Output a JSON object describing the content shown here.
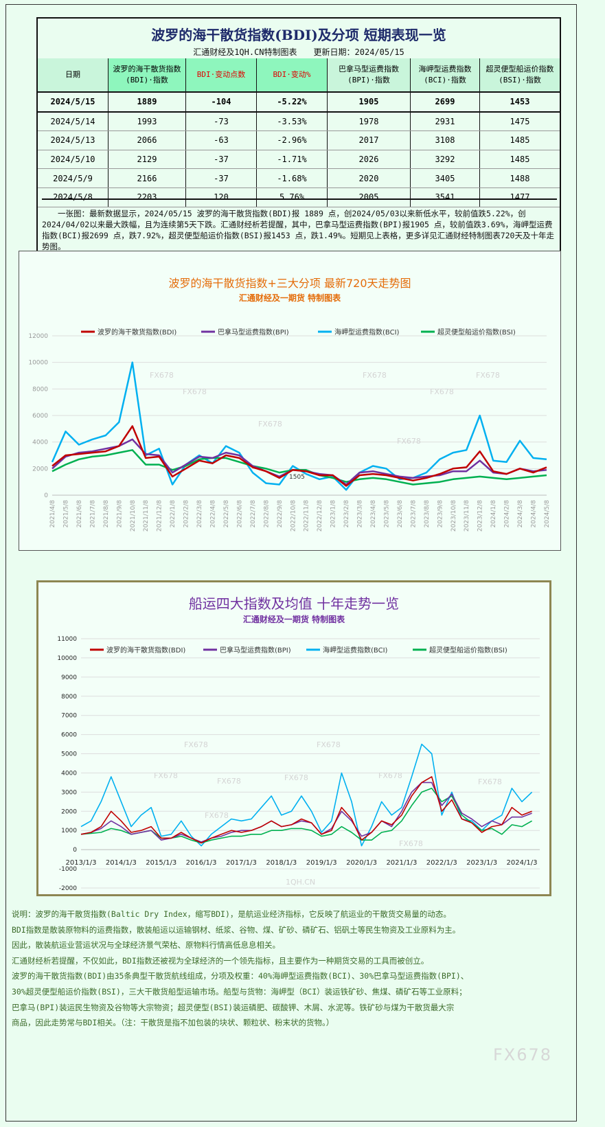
{
  "table_section": {
    "title": "波罗的海干散货指数(BDI)及分项 短期表现一览",
    "subtitle": "汇通财经及1QH.CN特制图表　　更新日期：2024/05/15",
    "headers": [
      "日期",
      "波罗的海干散货指数(BDI)·指数",
      "BDI·变动点数",
      "BDI·变动%",
      "巴拿马型运费指数(BPI)·指数",
      "海岬型运费指数(BCI)·指数",
      "超灵便型船运价指数(BSI)·指数"
    ],
    "rows": [
      [
        "2024/5/15",
        "1889",
        "-104",
        "-5.22%",
        "1905",
        "2699",
        "1453"
      ],
      [
        "2024/5/14",
        "1993",
        "-73",
        "-3.53%",
        "1978",
        "2931",
        "1475"
      ],
      [
        "2024/5/13",
        "2066",
        "-63",
        "-2.96%",
        "2017",
        "3108",
        "1485"
      ],
      [
        "2024/5/10",
        "2129",
        "-37",
        "-1.71%",
        "2026",
        "3292",
        "1485"
      ],
      [
        "2024/5/9",
        "2166",
        "-37",
        "-1.68%",
        "2020",
        "3405",
        "1488"
      ],
      [
        "2024/5/8",
        "2203",
        "120",
        "5.76%",
        "2005",
        "3541",
        "1477"
      ]
    ],
    "paragraph": "一张图：最新数据显示，2024/05/15 波罗的海干散货指数(BDI)报 1889 点，创2024/05/03以来新低水平，较前值跌5.22%，创2024/04/02以来最大跌幅，且为连续第5天下跌。汇通财经析若提醒，其中，巴拿马型运费指数(BPI)报1905 点，较前值跌3.69%，海岬型运费指数(BCI)报2699 点，跌7.92%，超灵便型船运价指数(BSI)报1453 点，跌1.49%。短期见上表格，更多详见汇通财经特制图表720天及十年走势图。"
  },
  "colors": {
    "BDI": "#c00000",
    "BPI": "#7030a0",
    "BCI": "#00b0f0",
    "BSI": "#00b050"
  },
  "chart_data": [
    {
      "type": "line",
      "title": "波罗的海干散货指数+三大分项  最新720天走势图",
      "subtitle": "汇通财经及一期货  特制图表",
      "ylim": [
        0,
        12000
      ],
      "yticks": [
        0,
        2000,
        4000,
        6000,
        8000,
        10000,
        12000
      ],
      "legend_position": "top",
      "annotation": "1505",
      "watermarks": [
        "FX678",
        "FX678",
        "FX678",
        "FX678",
        "FX678",
        "FX678",
        "FX678"
      ],
      "x": [
        "2021/4/8",
        "2021/5/8",
        "2021/6/8",
        "2021/7/8",
        "2021/8/8",
        "2021/9/8",
        "2021/10/8",
        "2021/11/8",
        "2021/12/8",
        "2022/1/8",
        "2022/2/8",
        "2022/3/8",
        "2022/4/8",
        "2022/5/8",
        "2022/6/8",
        "2022/7/8",
        "2022/8/8",
        "2022/9/8",
        "2022/10/8",
        "2022/11/8",
        "2022/12/8",
        "2023/1/8",
        "2023/2/8",
        "2023/3/8",
        "2023/4/8",
        "2023/5/8",
        "2023/6/8",
        "2023/7/8",
        "2023/8/8",
        "2023/9/8",
        "2023/10/8",
        "2023/11/8",
        "2023/12/8",
        "2024/1/8",
        "2024/2/8",
        "2024/3/8",
        "2024/4/8",
        "2024/5/8"
      ],
      "series": [
        {
          "name": "波罗的海干散货指数(BDI)",
          "key": "BDI",
          "values": [
            2200,
            3000,
            3100,
            3200,
            3300,
            3700,
            5200,
            2800,
            2900,
            1400,
            2000,
            2600,
            2400,
            3000,
            2800,
            2100,
            1800,
            1300,
            1900,
            1800,
            1500,
            1500,
            700,
            1500,
            1600,
            1500,
            1300,
            1100,
            1300,
            1600,
            2000,
            2100,
            3300,
            1800,
            1600,
            2000,
            1700,
            2100
          ]
        },
        {
          "name": "巴拿马型运费指数(BPI)",
          "key": "BPI",
          "values": [
            2000,
            2900,
            3200,
            3300,
            3500,
            3700,
            4200,
            3100,
            3000,
            1700,
            2300,
            2900,
            2800,
            3200,
            3000,
            2200,
            1800,
            1400,
            1900,
            1800,
            1600,
            1500,
            800,
            1700,
            1800,
            1600,
            1400,
            1300,
            1400,
            1500,
            1800,
            1800,
            2600,
            1700,
            1600,
            2000,
            1800,
            1900
          ]
        },
        {
          "name": "海岬型运费指数(BCI)",
          "key": "BCI",
          "values": [
            2500,
            4800,
            3800,
            4200,
            4500,
            5500,
            10000,
            3000,
            3500,
            800,
            2300,
            3000,
            2400,
            3700,
            3200,
            1700,
            900,
            800,
            2200,
            1600,
            1200,
            1400,
            400,
            1700,
            2200,
            2000,
            1200,
            1300,
            1700,
            2700,
            3200,
            3400,
            6000,
            2600,
            2500,
            4100,
            2800,
            2700
          ]
        },
        {
          "name": "超灵便型船运价指数(BSI)",
          "key": "BSI",
          "values": [
            1800,
            2300,
            2700,
            2900,
            3000,
            3200,
            3400,
            2300,
            2300,
            1900,
            2200,
            2700,
            2800,
            2800,
            2500,
            2200,
            2000,
            1700,
            1900,
            1900,
            1500,
            1300,
            1000,
            1200,
            1300,
            1200,
            1000,
            800,
            900,
            1000,
            1200,
            1300,
            1400,
            1300,
            1200,
            1300,
            1400,
            1500
          ]
        }
      ]
    },
    {
      "type": "line",
      "title": "船运四大指数及均值 十年走势一览",
      "subtitle": "汇通财经及一期货 特制图表",
      "ylim": [
        -2000,
        11000
      ],
      "yticks": [
        -2000,
        -1000,
        0,
        1000,
        2000,
        3000,
        4000,
        5000,
        6000,
        7000,
        8000,
        9000,
        10000,
        11000
      ],
      "legend_position": "top",
      "xticks": [
        "2013/1/3",
        "2014/1/3",
        "2015/1/3",
        "2016/1/3",
        "2017/1/3",
        "2018/1/3",
        "2019/1/3",
        "2020/1/3",
        "2021/1/3",
        "2022/1/3",
        "2023/1/3",
        "2024/1/3"
      ],
      "watermarks": [
        "FX678",
        "FX678",
        "FX678",
        "FX678",
        "FX678",
        "FX678",
        "FX678",
        "FX678",
        "FX678",
        "1QH.CN"
      ],
      "series": [
        {
          "name": "波罗的海干散货指数(BDI)",
          "key": "BDI",
          "values": [
            800,
            900,
            1200,
            2000,
            1500,
            900,
            1000,
            1200,
            600,
            600,
            900,
            600,
            350,
            600,
            800,
            1000,
            900,
            1000,
            1200,
            1500,
            1200,
            1300,
            1600,
            1400,
            800,
            1000,
            2200,
            1600,
            500,
            900,
            1500,
            1300,
            1800,
            2800,
            3500,
            3800,
            2000,
            2600,
            1600,
            1400,
            900,
            1200,
            1300,
            2200,
            1800,
            2000
          ]
        },
        {
          "name": "巴拿马型运费指数(BPI)",
          "key": "BPI",
          "values": [
            800,
            900,
            1100,
            1500,
            1200,
            800,
            900,
            1000,
            500,
            600,
            800,
            600,
            400,
            600,
            700,
            900,
            1000,
            1000,
            1200,
            1500,
            1200,
            1300,
            1500,
            1400,
            800,
            1100,
            2000,
            1500,
            700,
            900,
            1500,
            1200,
            2000,
            3000,
            3500,
            3500,
            2300,
            2900,
            1900,
            1600,
            1200,
            1500,
            1300,
            1700,
            1700,
            1900
          ]
        },
        {
          "name": "海岬型运费指数(BCI)",
          "key": "BCI",
          "values": [
            1200,
            1500,
            2500,
            3800,
            2500,
            1200,
            1800,
            2200,
            700,
            800,
            1500,
            700,
            200,
            800,
            1200,
            1600,
            1500,
            1600,
            2200,
            2800,
            1800,
            2000,
            2800,
            2000,
            900,
            1500,
            4000,
            2500,
            200,
            1200,
            2500,
            1800,
            2200,
            3800,
            5500,
            5000,
            1800,
            3000,
            1600,
            1500,
            1000,
            1500,
            1800,
            3200,
            2500,
            3000
          ]
        },
        {
          "name": "超灵便型船运价指数(BSI)",
          "key": "BSI",
          "values": [
            800,
            850,
            900,
            1100,
            1000,
            800,
            900,
            1000,
            600,
            600,
            700,
            500,
            350,
            500,
            600,
            700,
            700,
            800,
            800,
            1000,
            1000,
            1100,
            1100,
            1000,
            700,
            800,
            1200,
            900,
            500,
            500,
            900,
            1000,
            1500,
            2300,
            3000,
            3200,
            2500,
            2800,
            1800,
            1400,
            1000,
            1100,
            800,
            1300,
            1200,
            1500
          ]
        }
      ]
    }
  ],
  "notes": [
    "说明：波罗的海干散货指数(Baltic Dry Index，缩写BDI)，是航运业经济指标，它反映了航运业的干散货交易量的动态。",
    "BDI指数是散装原物料的运费指数，散装船运以运输钢材、纸浆、谷物、煤、矿砂、磷矿石、铝矾土等民生物资及工业原料为主。",
    "因此，散装航运业营运状况与全球经济景气荣枯、原物料行情高低息息相关。",
    "汇通财经析若提醒，不仅如此，BDI指数还被视为全球经济的一个领先指标，且主要作为一种期货交易的工具而被创立。",
    "波罗的海干散货指数(BDI)由35条典型干散货航线组成，分项及权重：40%海岬型运费指数(BCI)、30%巴拿马型运费指数(BPI)、",
    "30%超灵便型船运价指数(BSI)，三大干散货船型运输市场。船型与货物：海岬型（BCI）装运铁矿砂、焦煤、磷矿石等工业原料；",
    "巴拿马(BPI)装运民生物资及谷物等大宗物资；超灵便型(BSI)装运磷肥、碳酸钾、木屑、水泥等。铁矿砂与煤为干散货最大宗",
    "商品，因此走势常与BDI相关。（注：干散货是指不加包装的块状、颗粒状、粉末状的货物。）"
  ],
  "watermark": "FX678"
}
